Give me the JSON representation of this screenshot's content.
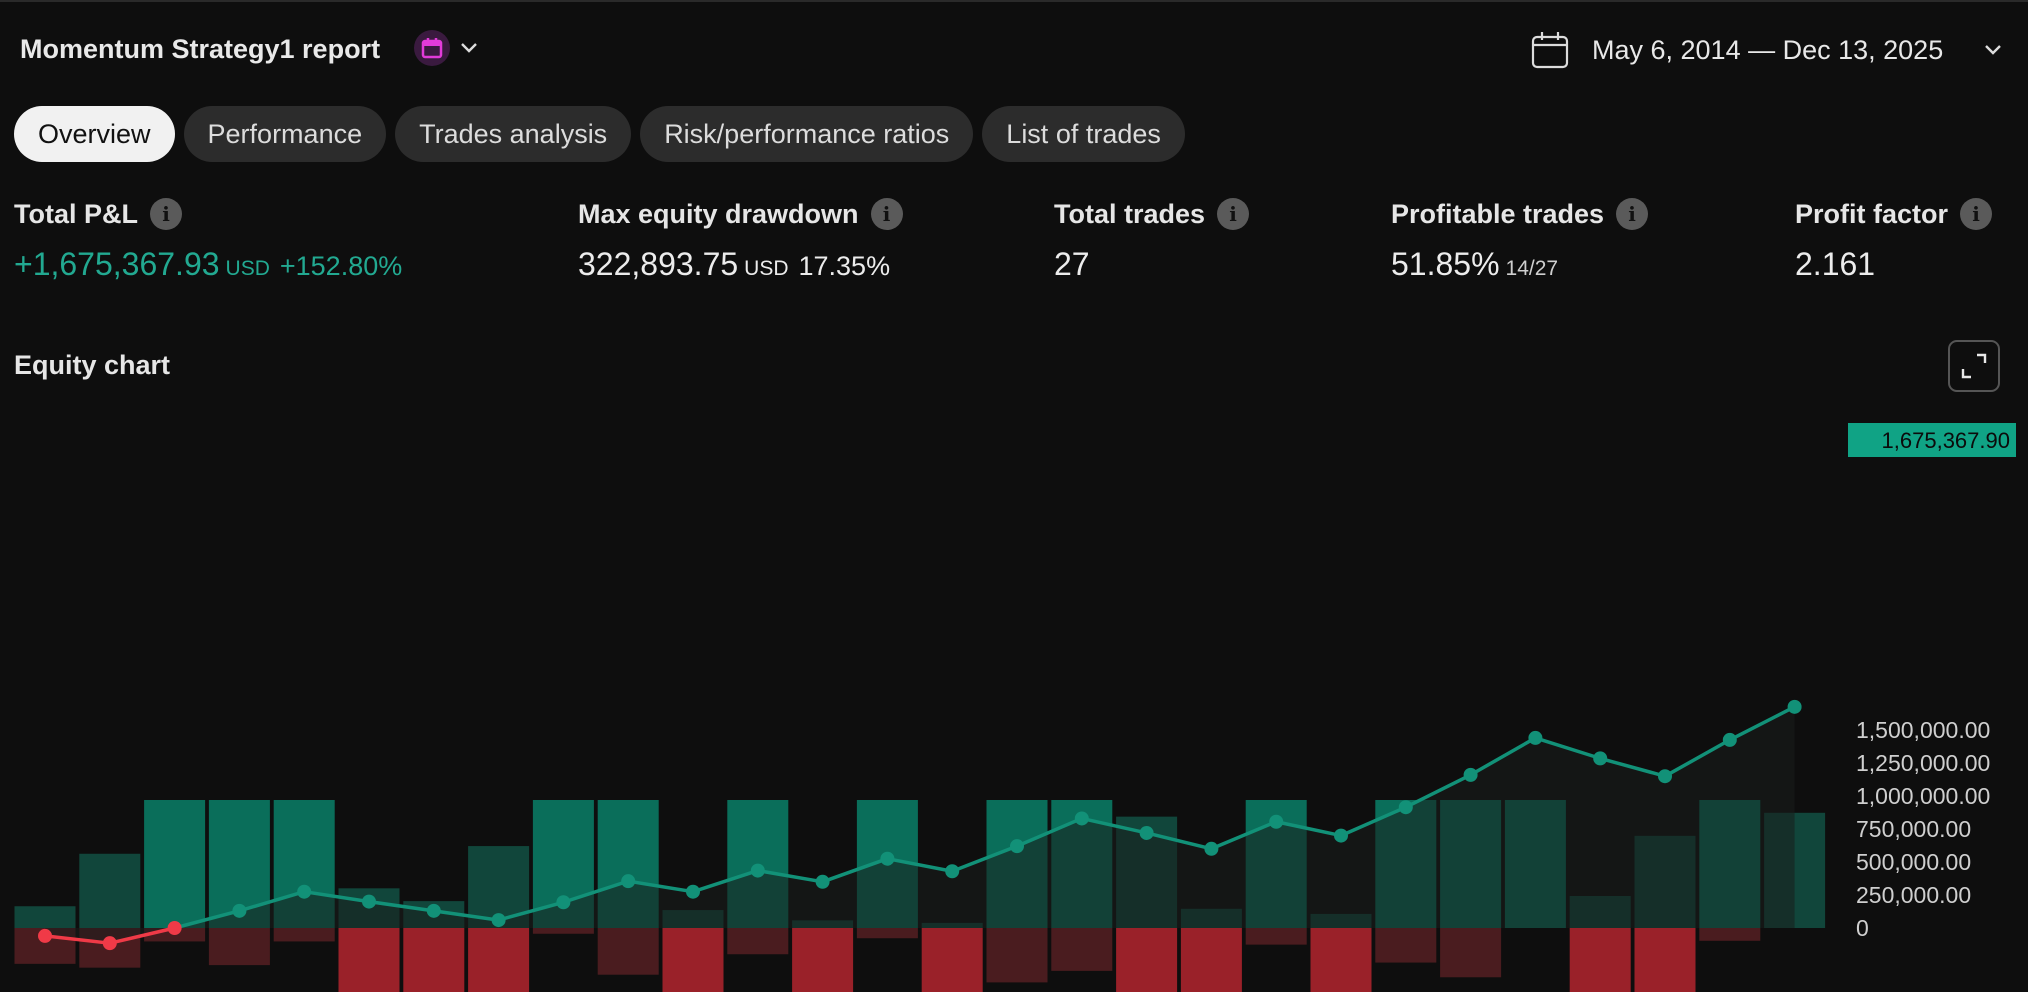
{
  "header": {
    "title": "Momentum Strategy1 report",
    "date_range": "May 6, 2014 — Dec 13, 2025",
    "calendar_badge_icon": "calendar-icon",
    "date_icon": "calendar-outline-icon"
  },
  "tabs": [
    {
      "label": "Overview",
      "active": true
    },
    {
      "label": "Performance",
      "active": false
    },
    {
      "label": "Trades analysis",
      "active": false
    },
    {
      "label": "Risk/performance ratios",
      "active": false
    },
    {
      "label": "List of trades",
      "active": false
    }
  ],
  "metrics": {
    "total_pnl": {
      "label": "Total P&L",
      "value": "+1,675,367.93",
      "unit": "USD",
      "pct": "+152.80%"
    },
    "max_drawdown": {
      "label": "Max equity drawdown",
      "value": "322,893.75",
      "unit": "USD",
      "pct": "17.35%"
    },
    "total_trades": {
      "label": "Total trades",
      "value": "27"
    },
    "profitable_trades": {
      "label": "Profitable trades",
      "value": "51.85%",
      "sub": "14/27"
    },
    "profit_factor": {
      "label": "Profit factor",
      "value": "2.161"
    }
  },
  "chart": {
    "title": "Equity chart",
    "last_value_label": "1,675,367.90"
  },
  "colors": {
    "accent_green": "#22a991",
    "line_green": "#129178",
    "loss_red": "#f03a47",
    "bar_green": "#0a6e5a",
    "bar_green_dim": "#11463b",
    "bar_red": "#9a2129",
    "bar_red_dim": "#4a1c1f",
    "label_bg": "#10a385"
  },
  "chart_data": {
    "type": "line",
    "ylim": [
      -170000,
      1800000
    ],
    "yticks": [
      "1,500,000.00",
      "1,250,000.00",
      "1,000,000.00",
      "750,000.00",
      "500,000.00",
      "250,000.00",
      "0"
    ],
    "ytick_values": [
      1500000,
      1250000,
      1000000,
      750000,
      500000,
      250000,
      0
    ],
    "series": [
      {
        "values": [
          -60000,
          -115000,
          0,
          130000,
          275000,
          200000,
          130000,
          60000,
          195000,
          355000,
          275000,
          435000,
          350000,
          525000,
          430000,
          620000,
          830000,
          720000,
          600000,
          805000,
          700000,
          915000,
          1160000,
          1440000,
          1285000,
          1150000,
          1425000,
          1675367.9
        ]
      }
    ],
    "up_bars": [
      0.17,
      0.58,
      1.0,
      1.0,
      1.0,
      0.31,
      0.21,
      0.64,
      1.0,
      1.0,
      0.14,
      1.0,
      0.06,
      1.0,
      0.04,
      1.0,
      1.0,
      0.87,
      0.15,
      1.0,
      0.11,
      1.0,
      1.0,
      1.0,
      0.25,
      0.72,
      1.0,
      0.9
    ],
    "down_bars": [
      0.56,
      0.62,
      0.21,
      0.58,
      0.21,
      1.0,
      1.0,
      1.0,
      0.09,
      0.73,
      1.0,
      0.41,
      1.0,
      0.16,
      1.0,
      0.85,
      0.67,
      1.0,
      1.0,
      0.26,
      1.0,
      0.54,
      0.77,
      0.0,
      1.0,
      1.0,
      0.2,
      0.0
    ]
  }
}
